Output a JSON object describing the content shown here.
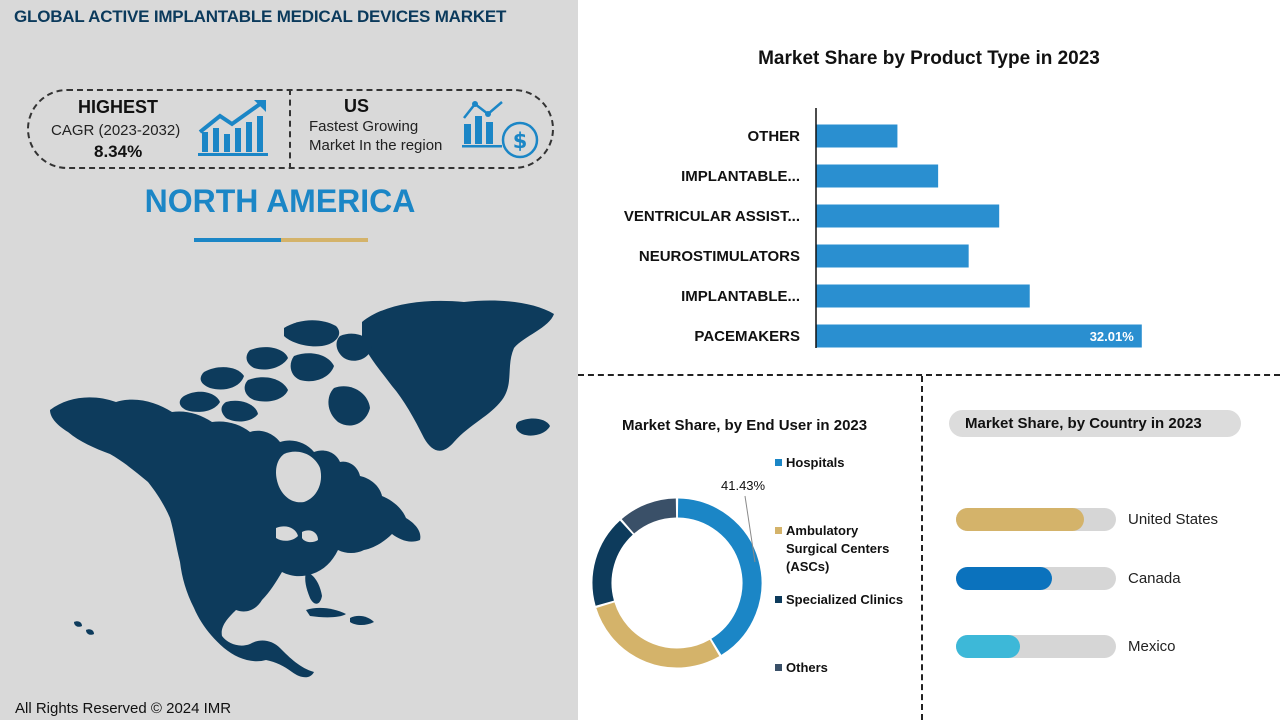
{
  "header": {
    "title": "GLOBAL ACTIVE IMPLANTABLE MEDICAL DEVICES MARKET"
  },
  "stats": {
    "highest": {
      "label": "HIGHEST",
      "period": "CAGR (2023-2032)",
      "value": "8.34%"
    },
    "us": {
      "label": "US",
      "line1": "Fastest Growing",
      "line2": "Market In the region"
    }
  },
  "region": "NORTH AMERICA",
  "footer": "All Rights Reserved © 2024 IMR",
  "colors": {
    "navy": "#0b3a5c",
    "blue": "#1b86c6",
    "bar": "#2a8fd0",
    "gold": "#d4b36a",
    "map": "#0d3b5c"
  },
  "chart_data": [
    {
      "type": "bar",
      "orientation": "horizontal",
      "title": "Market Share by Product Type in 2023",
      "categories": [
        "OTHER",
        "IMPLANTABLE...",
        "VENTRICULAR ASSIST...",
        "NEUROSTIMULATORS",
        "IMPLANTABLE...",
        "PACEMAKERS"
      ],
      "values": [
        8,
        12,
        18,
        15,
        21,
        32.01
      ],
      "data_labels": [
        "",
        "",
        "",
        "",
        "",
        "32.01%"
      ],
      "xlim": [
        0,
        45
      ]
    },
    {
      "type": "pie",
      "subtype": "donut",
      "title": "Market Share, by End User in 2023",
      "categories": [
        "Hospitals",
        "Ambulatory Surgical Centers (ASCs)",
        "Specialized Clinics",
        "Others"
      ],
      "values": [
        41.43,
        29,
        18,
        11.57
      ],
      "colors": [
        "#1b86c6",
        "#d4b36a",
        "#0d3b5c",
        "#3a5068"
      ],
      "data_labels": [
        "41.43%",
        "",
        "",
        ""
      ]
    },
    {
      "type": "bar",
      "orientation": "horizontal",
      "title": "Market Share, by Country in 2023",
      "categories": [
        "United States",
        "Canada",
        "Mexico"
      ],
      "values": [
        80,
        60,
        40
      ],
      "colors": [
        "#d4b36a",
        "#0b72bd",
        "#3db8d8"
      ],
      "xlim": [
        0,
        100
      ]
    }
  ]
}
